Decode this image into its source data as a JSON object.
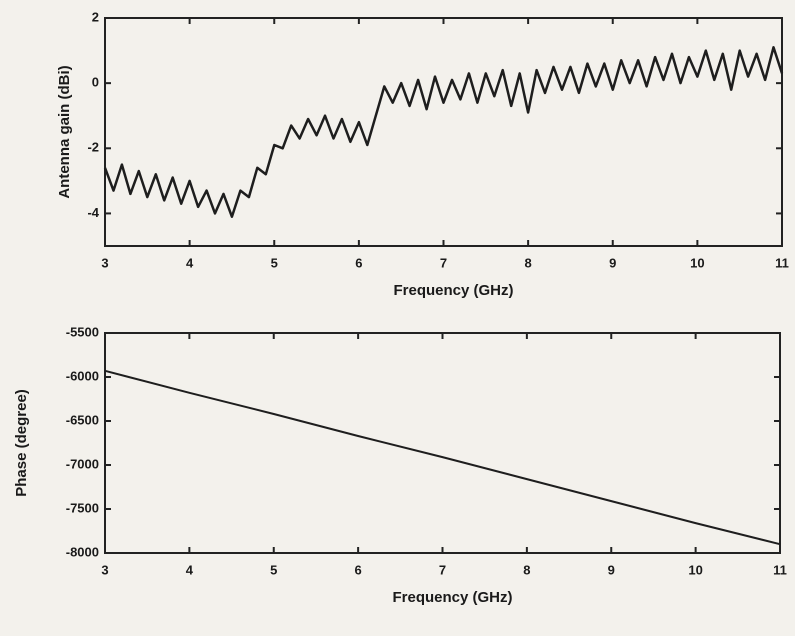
{
  "chart_data": [
    {
      "type": "line",
      "xlabel": "Frequency (GHz)",
      "ylabel": "Antenna gain (dBi)",
      "color": "#1e1e1e",
      "x": [
        3.0,
        3.1,
        3.2,
        3.3,
        3.4,
        3.5,
        3.6,
        3.7,
        3.8,
        3.9,
        4.0,
        4.1,
        4.2,
        4.3,
        4.4,
        4.5,
        4.6,
        4.7,
        4.8,
        4.9,
        5.0,
        5.1,
        5.2,
        5.3,
        5.4,
        5.5,
        5.6,
        5.7,
        5.8,
        5.9,
        6.0,
        6.1,
        6.2,
        6.3,
        6.4,
        6.5,
        6.6,
        6.7,
        6.8,
        6.9,
        7.0,
        7.1,
        7.2,
        7.3,
        7.4,
        7.5,
        7.6,
        7.7,
        7.8,
        7.9,
        8.0,
        8.1,
        8.2,
        8.3,
        8.4,
        8.5,
        8.6,
        8.7,
        8.8,
        8.9,
        9.0,
        9.1,
        9.2,
        9.3,
        9.4,
        9.5,
        9.6,
        9.7,
        9.8,
        9.9,
        10.0,
        10.1,
        10.2,
        10.3,
        10.4,
        10.5,
        10.6,
        10.7,
        10.8,
        10.9,
        11.0
      ],
      "values": [
        -2.6,
        -3.3,
        -2.5,
        -3.4,
        -2.7,
        -3.5,
        -2.8,
        -3.6,
        -2.9,
        -3.7,
        -3.0,
        -3.8,
        -3.3,
        -4.0,
        -3.4,
        -4.1,
        -3.3,
        -3.5,
        -2.6,
        -2.8,
        -1.9,
        -2.0,
        -1.3,
        -1.7,
        -1.1,
        -1.6,
        -1.0,
        -1.7,
        -1.1,
        -1.8,
        -1.2,
        -1.9,
        -1.0,
        -0.1,
        -0.6,
        0.0,
        -0.7,
        0.1,
        -0.8,
        0.2,
        -0.6,
        0.1,
        -0.5,
        0.3,
        -0.6,
        0.3,
        -0.4,
        0.4,
        -0.7,
        0.3,
        -0.9,
        0.4,
        -0.3,
        0.5,
        -0.2,
        0.5,
        -0.3,
        0.6,
        -0.1,
        0.6,
        -0.2,
        0.7,
        0.0,
        0.7,
        -0.1,
        0.8,
        0.1,
        0.9,
        0.0,
        0.8,
        0.2,
        1.0,
        0.1,
        0.9,
        -0.2,
        1.0,
        0.2,
        0.9,
        0.1,
        1.1,
        0.3
      ],
      "xlim": [
        3,
        11
      ],
      "xticks": [
        3,
        4,
        5,
        6,
        7,
        8,
        9,
        10,
        11
      ],
      "ylim": [
        -5,
        2
      ],
      "yticks": [
        2,
        0,
        -2,
        -4
      ]
    },
    {
      "type": "line",
      "xlabel": "Frequency (GHz)",
      "ylabel": "Phase (degree)",
      "color": "#1e1e1e",
      "x": [
        3,
        4,
        5,
        6,
        7,
        8,
        9,
        10,
        11
      ],
      "values": [
        -5930,
        -6180,
        -6420,
        -6670,
        -6910,
        -7160,
        -7410,
        -7660,
        -7900
      ],
      "xlim": [
        3,
        11
      ],
      "xticks": [
        3,
        4,
        5,
        6,
        7,
        8,
        9,
        10,
        11
      ],
      "ylim": [
        -8000,
        -5500
      ],
      "yticks": [
        -5500,
        -6000,
        -6500,
        -7000,
        -7500,
        -8000
      ]
    }
  ]
}
